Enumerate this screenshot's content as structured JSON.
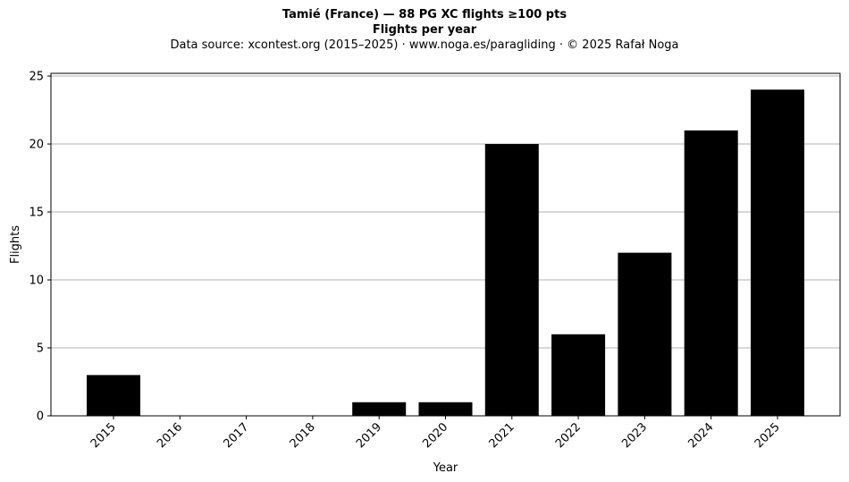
{
  "chart_data": {
    "type": "bar",
    "title": "Tamié (France)  —  88 PG XC flights ≥100 pts",
    "subtitle": "Flights per year",
    "source_line": "Data source: xcontest.org (2015–2025)  ·  www.noga.es/paragliding  ·  © 2025 Rafał Noga",
    "xlabel": "Year",
    "ylabel": "Flights",
    "categories": [
      "2015",
      "2016",
      "2017",
      "2018",
      "2019",
      "2020",
      "2021",
      "2022",
      "2023",
      "2024",
      "2025"
    ],
    "values": [
      3,
      0,
      0,
      0,
      1,
      1,
      20,
      6,
      12,
      21,
      24
    ],
    "yticks": [
      0,
      5,
      10,
      15,
      20,
      25
    ],
    "ylim": [
      0,
      25.2
    ],
    "grid": "horizontal",
    "bar_color": "#000000",
    "grid_color": "#b0b0b0"
  }
}
